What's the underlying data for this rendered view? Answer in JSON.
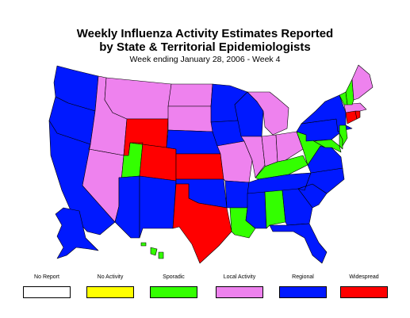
{
  "title_line1": "Weekly Influenza Activity Estimates Reported",
  "title_line2": "by State & Territorial Epidemiologists",
  "subtitle": "Week ending January 28, 2006 - Week 4",
  "colors": {
    "no_report": "#ffffff",
    "no_activity": "#ffff00",
    "sporadic": "#33ff00",
    "local": "#ee82ee",
    "regional": "#0019ff",
    "widespread": "#ff0000"
  },
  "legend": [
    {
      "label": "No Report",
      "color": "#ffffff"
    },
    {
      "label": "No Activity",
      "color": "#ffff00"
    },
    {
      "label": "Sporadic",
      "color": "#33ff00"
    },
    {
      "label": "Local Activity",
      "color": "#ee82ee"
    },
    {
      "label": "Regional",
      "color": "#0019ff"
    },
    {
      "label": "Widespread",
      "color": "#ff0000"
    }
  ],
  "states": {
    "washington": "regional",
    "oregon": "regional",
    "california": "regional",
    "idaho": "local",
    "nevada": "local",
    "montana": "local",
    "utah": "sporadic",
    "arizona": "regional",
    "wyoming": "widespread",
    "colorado": "widespread",
    "new_mexico": "regional",
    "north_dakota": "local",
    "south_dakota": "local",
    "nebraska": "regional",
    "kansas": "widespread",
    "oklahoma": "regional",
    "texas": "widespread",
    "minnesota": "regional",
    "iowa": "regional",
    "missouri": "local",
    "arkansas": "regional",
    "louisiana": "sporadic",
    "wisconsin": "regional",
    "illinois": "local",
    "michigan": "local",
    "indiana": "local",
    "ohio": "local",
    "kentucky": "sporadic",
    "tennessee": "regional",
    "mississippi": "regional",
    "alabama": "sporadic",
    "georgia": "regional",
    "florida": "regional",
    "south_carolina": "regional",
    "north_carolina": "regional",
    "virginia": "regional",
    "west_virginia": "sporadic",
    "pennsylvania": "regional",
    "new_york": "regional",
    "maryland": "sporadic",
    "delaware": "sporadic",
    "new_jersey": "sporadic",
    "connecticut": "widespread",
    "rhode_island": "widespread",
    "massachusetts": "local",
    "vermont": "sporadic",
    "new_hampshire": "sporadic",
    "maine": "local",
    "alaska": "regional",
    "hawaii": "sporadic"
  }
}
